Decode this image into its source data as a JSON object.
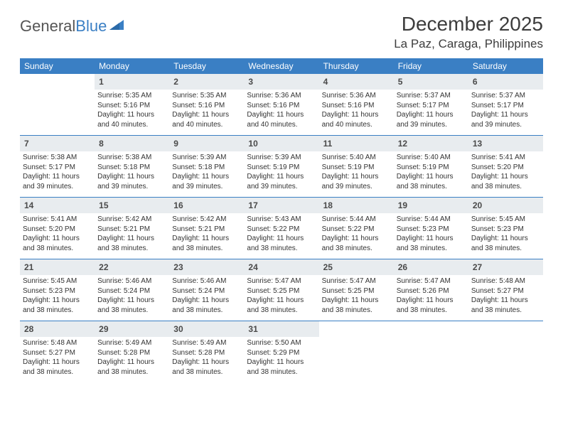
{
  "logo": {
    "text_a": "General",
    "text_b": "Blue"
  },
  "title": "December 2025",
  "location": "La Paz, Caraga, Philippines",
  "colors": {
    "header_bar": "#3a7fc4",
    "daynum_bg": "#e8ecef",
    "week_divider": "#3a7fc4",
    "text": "#333333",
    "title_text": "#3d3d3d"
  },
  "weekdays": [
    "Sunday",
    "Monday",
    "Tuesday",
    "Wednesday",
    "Thursday",
    "Friday",
    "Saturday"
  ],
  "weeks": [
    [
      null,
      {
        "n": "1",
        "sr": "Sunrise: 5:35 AM",
        "ss": "Sunset: 5:16 PM",
        "d1": "Daylight: 11 hours",
        "d2": "and 40 minutes."
      },
      {
        "n": "2",
        "sr": "Sunrise: 5:35 AM",
        "ss": "Sunset: 5:16 PM",
        "d1": "Daylight: 11 hours",
        "d2": "and 40 minutes."
      },
      {
        "n": "3",
        "sr": "Sunrise: 5:36 AM",
        "ss": "Sunset: 5:16 PM",
        "d1": "Daylight: 11 hours",
        "d2": "and 40 minutes."
      },
      {
        "n": "4",
        "sr": "Sunrise: 5:36 AM",
        "ss": "Sunset: 5:16 PM",
        "d1": "Daylight: 11 hours",
        "d2": "and 40 minutes."
      },
      {
        "n": "5",
        "sr": "Sunrise: 5:37 AM",
        "ss": "Sunset: 5:17 PM",
        "d1": "Daylight: 11 hours",
        "d2": "and 39 minutes."
      },
      {
        "n": "6",
        "sr": "Sunrise: 5:37 AM",
        "ss": "Sunset: 5:17 PM",
        "d1": "Daylight: 11 hours",
        "d2": "and 39 minutes."
      }
    ],
    [
      {
        "n": "7",
        "sr": "Sunrise: 5:38 AM",
        "ss": "Sunset: 5:17 PM",
        "d1": "Daylight: 11 hours",
        "d2": "and 39 minutes."
      },
      {
        "n": "8",
        "sr": "Sunrise: 5:38 AM",
        "ss": "Sunset: 5:18 PM",
        "d1": "Daylight: 11 hours",
        "d2": "and 39 minutes."
      },
      {
        "n": "9",
        "sr": "Sunrise: 5:39 AM",
        "ss": "Sunset: 5:18 PM",
        "d1": "Daylight: 11 hours",
        "d2": "and 39 minutes."
      },
      {
        "n": "10",
        "sr": "Sunrise: 5:39 AM",
        "ss": "Sunset: 5:19 PM",
        "d1": "Daylight: 11 hours",
        "d2": "and 39 minutes."
      },
      {
        "n": "11",
        "sr": "Sunrise: 5:40 AM",
        "ss": "Sunset: 5:19 PM",
        "d1": "Daylight: 11 hours",
        "d2": "and 39 minutes."
      },
      {
        "n": "12",
        "sr": "Sunrise: 5:40 AM",
        "ss": "Sunset: 5:19 PM",
        "d1": "Daylight: 11 hours",
        "d2": "and 38 minutes."
      },
      {
        "n": "13",
        "sr": "Sunrise: 5:41 AM",
        "ss": "Sunset: 5:20 PM",
        "d1": "Daylight: 11 hours",
        "d2": "and 38 minutes."
      }
    ],
    [
      {
        "n": "14",
        "sr": "Sunrise: 5:41 AM",
        "ss": "Sunset: 5:20 PM",
        "d1": "Daylight: 11 hours",
        "d2": "and 38 minutes."
      },
      {
        "n": "15",
        "sr": "Sunrise: 5:42 AM",
        "ss": "Sunset: 5:21 PM",
        "d1": "Daylight: 11 hours",
        "d2": "and 38 minutes."
      },
      {
        "n": "16",
        "sr": "Sunrise: 5:42 AM",
        "ss": "Sunset: 5:21 PM",
        "d1": "Daylight: 11 hours",
        "d2": "and 38 minutes."
      },
      {
        "n": "17",
        "sr": "Sunrise: 5:43 AM",
        "ss": "Sunset: 5:22 PM",
        "d1": "Daylight: 11 hours",
        "d2": "and 38 minutes."
      },
      {
        "n": "18",
        "sr": "Sunrise: 5:44 AM",
        "ss": "Sunset: 5:22 PM",
        "d1": "Daylight: 11 hours",
        "d2": "and 38 minutes."
      },
      {
        "n": "19",
        "sr": "Sunrise: 5:44 AM",
        "ss": "Sunset: 5:23 PM",
        "d1": "Daylight: 11 hours",
        "d2": "and 38 minutes."
      },
      {
        "n": "20",
        "sr": "Sunrise: 5:45 AM",
        "ss": "Sunset: 5:23 PM",
        "d1": "Daylight: 11 hours",
        "d2": "and 38 minutes."
      }
    ],
    [
      {
        "n": "21",
        "sr": "Sunrise: 5:45 AM",
        "ss": "Sunset: 5:23 PM",
        "d1": "Daylight: 11 hours",
        "d2": "and 38 minutes."
      },
      {
        "n": "22",
        "sr": "Sunrise: 5:46 AM",
        "ss": "Sunset: 5:24 PM",
        "d1": "Daylight: 11 hours",
        "d2": "and 38 minutes."
      },
      {
        "n": "23",
        "sr": "Sunrise: 5:46 AM",
        "ss": "Sunset: 5:24 PM",
        "d1": "Daylight: 11 hours",
        "d2": "and 38 minutes."
      },
      {
        "n": "24",
        "sr": "Sunrise: 5:47 AM",
        "ss": "Sunset: 5:25 PM",
        "d1": "Daylight: 11 hours",
        "d2": "and 38 minutes."
      },
      {
        "n": "25",
        "sr": "Sunrise: 5:47 AM",
        "ss": "Sunset: 5:25 PM",
        "d1": "Daylight: 11 hours",
        "d2": "and 38 minutes."
      },
      {
        "n": "26",
        "sr": "Sunrise: 5:47 AM",
        "ss": "Sunset: 5:26 PM",
        "d1": "Daylight: 11 hours",
        "d2": "and 38 minutes."
      },
      {
        "n": "27",
        "sr": "Sunrise: 5:48 AM",
        "ss": "Sunset: 5:27 PM",
        "d1": "Daylight: 11 hours",
        "d2": "and 38 minutes."
      }
    ],
    [
      {
        "n": "28",
        "sr": "Sunrise: 5:48 AM",
        "ss": "Sunset: 5:27 PM",
        "d1": "Daylight: 11 hours",
        "d2": "and 38 minutes."
      },
      {
        "n": "29",
        "sr": "Sunrise: 5:49 AM",
        "ss": "Sunset: 5:28 PM",
        "d1": "Daylight: 11 hours",
        "d2": "and 38 minutes."
      },
      {
        "n": "30",
        "sr": "Sunrise: 5:49 AM",
        "ss": "Sunset: 5:28 PM",
        "d1": "Daylight: 11 hours",
        "d2": "and 38 minutes."
      },
      {
        "n": "31",
        "sr": "Sunrise: 5:50 AM",
        "ss": "Sunset: 5:29 PM",
        "d1": "Daylight: 11 hours",
        "d2": "and 38 minutes."
      },
      null,
      null,
      null
    ]
  ]
}
